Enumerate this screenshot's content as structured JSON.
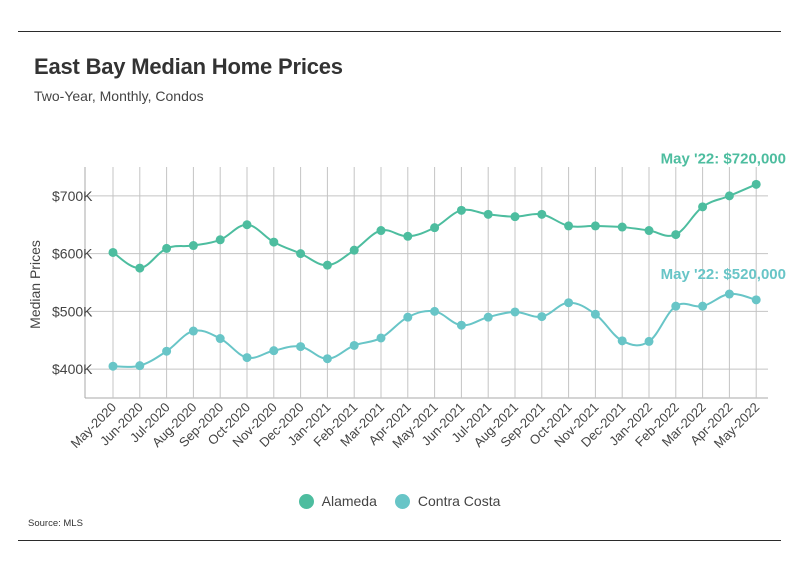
{
  "header": {
    "title": "East Bay Median Home Prices",
    "subtitle": "Two-Year, Monthly, Condos"
  },
  "footer": {
    "source": "Source:  MLS"
  },
  "chart_data": {
    "type": "line",
    "title": "East Bay Median Home Prices",
    "subtitle": "Two-Year, Monthly, Condos",
    "xlabel": "",
    "ylabel": "Median Prices",
    "ylim": [
      350000,
      750000
    ],
    "yticks": [
      400000,
      500000,
      600000,
      700000
    ],
    "ytick_labels": [
      "$400K",
      "$500K",
      "$600K",
      "$700K"
    ],
    "grid": true,
    "legend_position": "bottom-center",
    "categories": [
      "May-2020",
      "Jun-2020",
      "Jul-2020",
      "Aug-2020",
      "Sep-2020",
      "Oct-2020",
      "Nov-2020",
      "Dec-2020",
      "Jan-2021",
      "Feb-2021",
      "Mar-2021",
      "Apr-2021",
      "May-2021",
      "Jun-2021",
      "Jul-2021",
      "Aug-2021",
      "Sep-2021",
      "Oct-2021",
      "Nov-2021",
      "Dec-2021",
      "Jan-2022",
      "Feb-2022",
      "Mar-2022",
      "Apr-2022",
      "May-2022"
    ],
    "series": [
      {
        "name": "Alameda",
        "color": "#4dbd9f",
        "values": [
          602000,
          575000,
          609000,
          614000,
          624000,
          650000,
          620000,
          600000,
          580000,
          606000,
          640000,
          630000,
          645000,
          675000,
          668000,
          664000,
          668000,
          648000,
          648000,
          646000,
          640000,
          633000,
          681000,
          700000,
          720000
        ],
        "annotation": "May '22: $720,000"
      },
      {
        "name": "Contra Costa",
        "color": "#68c5c7",
        "values": [
          405000,
          406000,
          431000,
          466000,
          453000,
          420000,
          432000,
          439000,
          418000,
          441000,
          454000,
          490000,
          500000,
          476000,
          490000,
          499000,
          491000,
          515000,
          495000,
          449000,
          448000,
          509000,
          509000,
          530000,
          520000
        ],
        "annotation": "May '22: $520,000"
      }
    ]
  }
}
